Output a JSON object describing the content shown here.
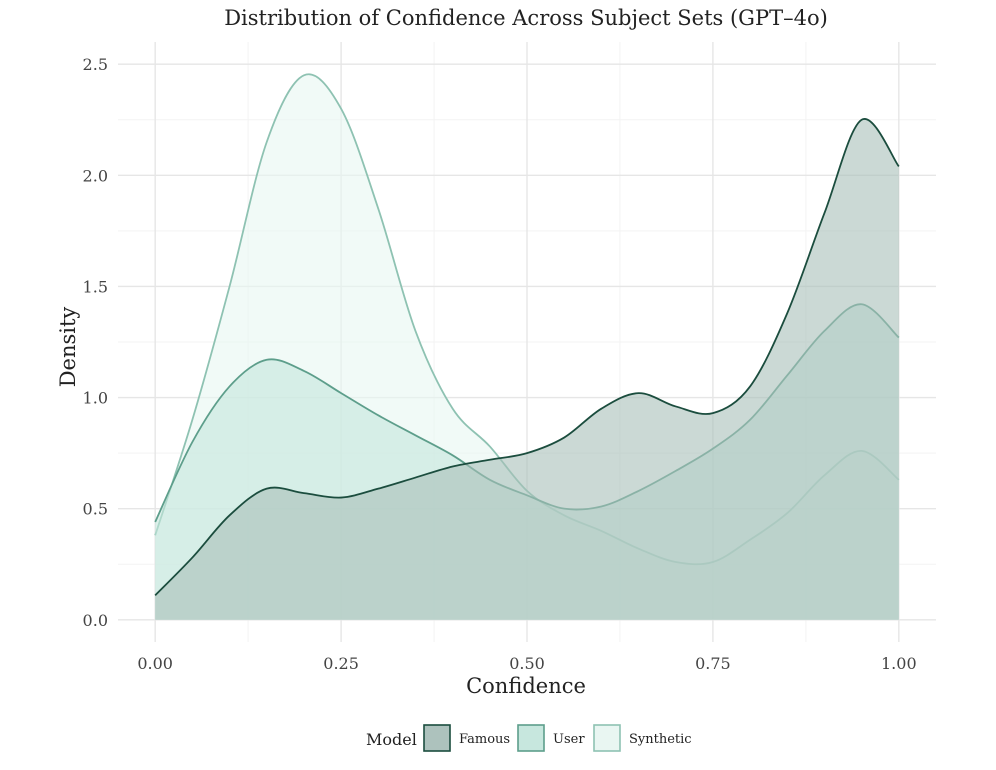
{
  "chart_data": {
    "type": "area",
    "subtype": "density",
    "title": "Distribution of Confidence Across Subject Sets (GPT–4o)",
    "xlabel": "Confidence",
    "ylabel": "Density",
    "xlim": [
      -0.05,
      1.05
    ],
    "ylim": [
      -0.1,
      2.6
    ],
    "x_ticks": [
      0.0,
      0.25,
      0.5,
      0.75,
      1.0
    ],
    "x_tick_labels": [
      "0.00",
      "0.25",
      "0.50",
      "0.75",
      "1.00"
    ],
    "y_ticks": [
      0.0,
      0.5,
      1.0,
      1.5,
      2.0,
      2.5
    ],
    "y_tick_labels": [
      "0.0",
      "0.5",
      "1.0",
      "1.5",
      "2.0",
      "2.5"
    ],
    "grid": true,
    "legend_title": "Model",
    "legend_position": "bottom",
    "series": [
      {
        "name": "Synthetic",
        "fill": "#e8f6f1",
        "stroke": "#8ec2b2",
        "x": [
          0.0,
          0.05,
          0.1,
          0.15,
          0.2,
          0.25,
          0.3,
          0.35,
          0.4,
          0.45,
          0.5,
          0.55,
          0.6,
          0.65,
          0.7,
          0.75,
          0.8,
          0.85,
          0.9,
          0.95,
          1.0
        ],
        "y": [
          0.38,
          0.9,
          1.5,
          2.15,
          2.45,
          2.3,
          1.85,
          1.3,
          0.95,
          0.78,
          0.58,
          0.47,
          0.4,
          0.32,
          0.26,
          0.26,
          0.36,
          0.48,
          0.65,
          0.76,
          0.63
        ]
      },
      {
        "name": "User",
        "fill": "#c4e6dc",
        "stroke": "#5d9e8b",
        "x": [
          0.0,
          0.05,
          0.1,
          0.15,
          0.2,
          0.25,
          0.3,
          0.35,
          0.4,
          0.45,
          0.5,
          0.55,
          0.6,
          0.65,
          0.7,
          0.75,
          0.8,
          0.85,
          0.9,
          0.95,
          1.0
        ],
        "y": [
          0.44,
          0.8,
          1.05,
          1.17,
          1.12,
          1.02,
          0.92,
          0.83,
          0.74,
          0.63,
          0.56,
          0.5,
          0.51,
          0.58,
          0.67,
          0.77,
          0.9,
          1.1,
          1.3,
          1.42,
          1.27
        ]
      },
      {
        "name": "Famous",
        "fill": "#a9bfb9",
        "stroke": "#1b4d3e",
        "x": [
          0.0,
          0.05,
          0.1,
          0.15,
          0.2,
          0.25,
          0.3,
          0.35,
          0.4,
          0.45,
          0.5,
          0.55,
          0.6,
          0.65,
          0.7,
          0.75,
          0.8,
          0.85,
          0.9,
          0.95,
          1.0
        ],
        "y": [
          0.11,
          0.28,
          0.47,
          0.59,
          0.57,
          0.55,
          0.59,
          0.64,
          0.69,
          0.72,
          0.75,
          0.82,
          0.95,
          1.02,
          0.96,
          0.93,
          1.05,
          1.38,
          1.83,
          2.25,
          2.04
        ]
      }
    ],
    "legend_order": [
      "Famous",
      "User",
      "Synthetic"
    ]
  }
}
